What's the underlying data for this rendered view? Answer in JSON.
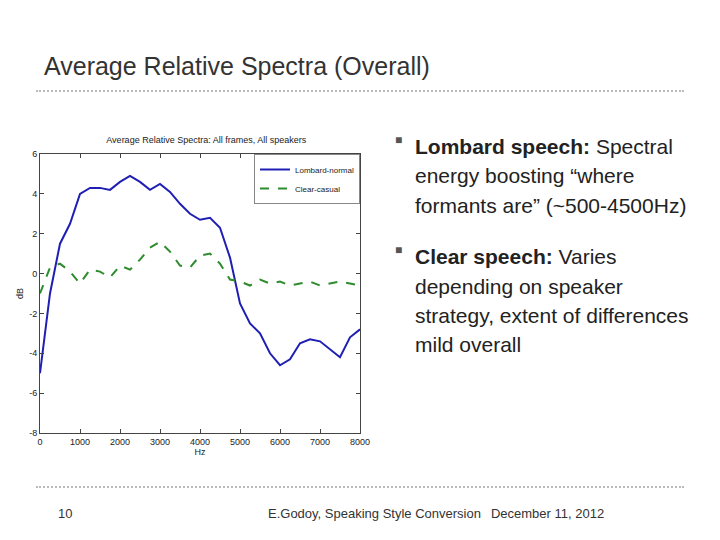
{
  "slide": {
    "title": "Average Relative Spectra (Overall)",
    "bullets": [
      {
        "label": "Lombard speech:",
        "text": "Spectral energy boosting “where formants are” (~500-4500Hz)"
      },
      {
        "label": "Clear speech:",
        "text": "Varies depending on speaker strategy, extent of differences mild overall"
      }
    ],
    "page_number": "10",
    "footer": [
      "E.Godoy, Speaking Style Conversion",
      "December 11, 2012"
    ]
  },
  "chart_data": {
    "type": "line",
    "title": "Average Relative Spectra: All frames, All speakers",
    "x_label": "Hz",
    "y_label": "dB",
    "x": [
      0,
      250,
      500,
      750,
      1000,
      1250,
      1500,
      1750,
      2000,
      2250,
      2500,
      2750,
      3000,
      3250,
      3500,
      3750,
      4000,
      4250,
      4500,
      4750,
      5000,
      5250,
      5500,
      5750,
      6000,
      6250,
      6500,
      6750,
      7000,
      7250,
      7500,
      7750,
      8000
    ],
    "series": [
      {
        "name": "Lombard-normal",
        "color": "#1f1fb4",
        "line_style": "solid",
        "values": [
          -5.0,
          -1.0,
          1.5,
          2.5,
          4.0,
          4.3,
          4.3,
          4.2,
          4.6,
          4.9,
          4.6,
          4.2,
          4.5,
          4.1,
          3.5,
          3.0,
          2.7,
          2.8,
          2.3,
          0.8,
          -1.5,
          -2.5,
          -3.0,
          -4.0,
          -4.6,
          -4.3,
          -3.5,
          -3.3,
          -3.4,
          -3.8,
          -4.2,
          -3.2,
          -2.8
        ]
      },
      {
        "name": "Clear-casual",
        "color": "#2e8b2e",
        "line_style": "dashed",
        "values": [
          -1.0,
          0.3,
          0.5,
          0.1,
          -0.5,
          0.2,
          0.1,
          -0.2,
          0.4,
          0.2,
          0.7,
          1.3,
          1.6,
          1.1,
          0.4,
          0.3,
          0.9,
          1.0,
          0.5,
          -0.3,
          -0.4,
          -0.6,
          -0.3,
          -0.5,
          -0.4,
          -0.6,
          -0.5,
          -0.4,
          -0.6,
          -0.5,
          -0.4,
          -0.5,
          -0.6
        ]
      }
    ],
    "xlim": [
      0,
      8000
    ],
    "xticks": [
      0,
      1000,
      2000,
      3000,
      4000,
      5000,
      6000,
      7000,
      8000
    ],
    "ylim": [
      -8,
      6
    ],
    "yticks": [
      -8,
      -6,
      -4,
      -2,
      0,
      2,
      4,
      6
    ],
    "grid": false,
    "legend": "top right"
  }
}
